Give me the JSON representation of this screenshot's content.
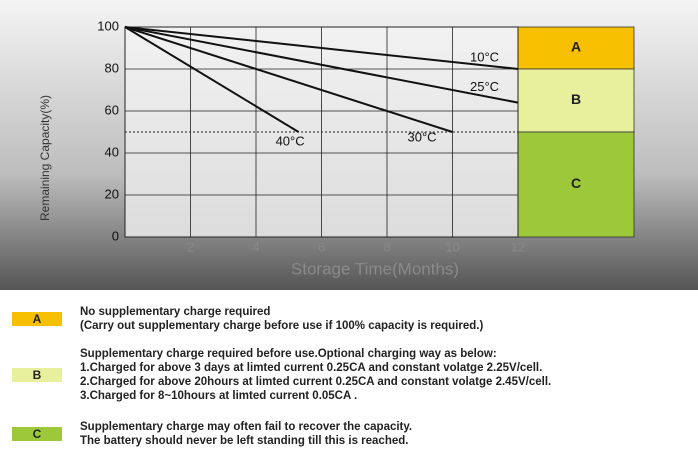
{
  "chart_data": {
    "type": "line",
    "ylabel": "Remaining Capacity(%)",
    "xlabel": "Storage Time(Months)",
    "xlim": [
      0,
      12
    ],
    "xticks": [
      2,
      4,
      6,
      8,
      10,
      12
    ],
    "ylim": [
      0,
      100
    ],
    "yticks": [
      0,
      20,
      40,
      60,
      80,
      100
    ],
    "grid": true,
    "reference_line": 50,
    "series": [
      {
        "name": "10°C",
        "color": "#111111",
        "x": [
          0,
          12
        ],
        "values": [
          100,
          80
        ]
      },
      {
        "name": "25°C",
        "color": "#111111",
        "x": [
          0,
          12
        ],
        "values": [
          100,
          64
        ]
      },
      {
        "name": "30°C",
        "color": "#111111",
        "x": [
          0,
          10
        ],
        "values": [
          100,
          50
        ]
      },
      {
        "name": "40°C",
        "color": "#111111",
        "x": [
          0,
          5.3
        ],
        "values": [
          100,
          50
        ]
      }
    ],
    "zones": [
      {
        "label": "A",
        "from": 80,
        "to": 100,
        "color": "#f6c000"
      },
      {
        "label": "B",
        "from": 50,
        "to": 80,
        "color": "#e8ef9d"
      },
      {
        "label": "C",
        "from": 0,
        "to": 50,
        "color": "#9cc83a"
      }
    ]
  },
  "notes": [
    {
      "label": "A",
      "color": "#f6c000",
      "lines": [
        "No supplementary charge required",
        "(Carry out supplementary charge before use if 100% capacity is required.)"
      ]
    },
    {
      "label": "B",
      "color": "#e8ef9d",
      "lines": [
        "Supplementary charge required before use.Optional charging way as below:",
        "1.Charged for above 3 days at limted current 0.25CA and constant volatge 2.25V/cell.",
        "2.Charged for above 20hours at limted current 0.25CA and constant volatge 2.45V/cell.",
        "3.Charged for 8~10hours at limted current 0.05CA ."
      ]
    },
    {
      "label": "C",
      "color": "#9cc83a",
      "lines": [
        "Supplementary charge may often fail to recover the capacity.",
        "The battery should never be  left standing till this is reached."
      ]
    }
  ]
}
